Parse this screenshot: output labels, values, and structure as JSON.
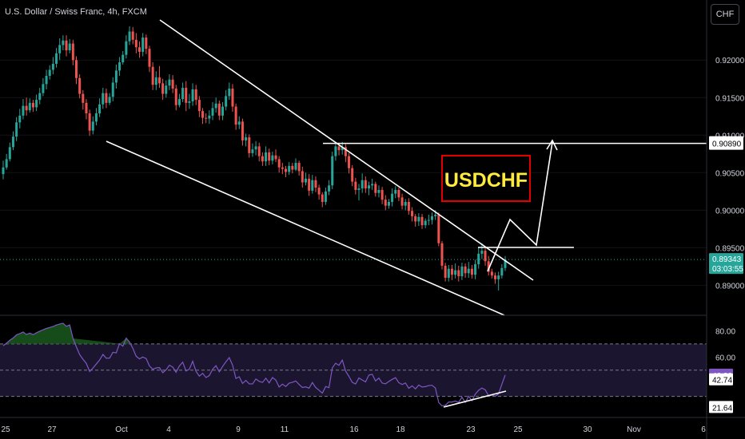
{
  "header": {
    "symbol_title": "U.S. Dollar / Swiss Franc, 4h, FXCM",
    "currency_button": "CHF"
  },
  "chart_data": [
    {
      "type": "candlestick",
      "title": "U.S. Dollar / Swiss Franc, 4h, FXCM",
      "annotation": "USDCHF",
      "ylim": [
        0.886,
        0.928
      ],
      "yticks": [
        "0.92000",
        "0.91500",
        "0.91000",
        "0.90500",
        "0.90000",
        "0.89500",
        "0.89000"
      ],
      "xticks": [
        "25",
        "27",
        "Oct",
        "4",
        "9",
        "11",
        "16",
        "18",
        "23",
        "25",
        "30",
        "Nov",
        "6"
      ],
      "last_price": "0.89343",
      "countdown": "03:03:55",
      "target_level": "0.90890",
      "colors": {
        "up": "#26a69a",
        "down": "#ef5350",
        "annotation_box": "#e50000",
        "annotation_text": "#ffeb3b",
        "lines": "#ffffff"
      },
      "candles": [
        [
          0.9048,
          0.9066,
          0.9041,
          0.9057
        ],
        [
          0.9057,
          0.9075,
          0.9054,
          0.9068
        ],
        [
          0.9068,
          0.909,
          0.9065,
          0.9084
        ],
        [
          0.9084,
          0.9105,
          0.908,
          0.9098
        ],
        [
          0.9098,
          0.9124,
          0.9092,
          0.9117
        ],
        [
          0.9117,
          0.9135,
          0.9109,
          0.9126
        ],
        [
          0.9126,
          0.9148,
          0.9121,
          0.9139
        ],
        [
          0.9139,
          0.915,
          0.9126,
          0.9133
        ],
        [
          0.9133,
          0.9149,
          0.913,
          0.9143
        ],
        [
          0.9143,
          0.9147,
          0.9131,
          0.9137
        ],
        [
          0.9137,
          0.9154,
          0.9132,
          0.9147
        ],
        [
          0.9147,
          0.9163,
          0.9141,
          0.9156
        ],
        [
          0.9156,
          0.9176,
          0.9152,
          0.9168
        ],
        [
          0.9168,
          0.9187,
          0.9161,
          0.9179
        ],
        [
          0.9179,
          0.9193,
          0.9174,
          0.9187
        ],
        [
          0.9187,
          0.9204,
          0.9181,
          0.9195
        ],
        [
          0.9195,
          0.9216,
          0.919,
          0.9209
        ],
        [
          0.9209,
          0.9229,
          0.92,
          0.922
        ],
        [
          0.922,
          0.9233,
          0.9213,
          0.9226
        ],
        [
          0.9226,
          0.9233,
          0.9205,
          0.9213
        ],
        [
          0.9213,
          0.9228,
          0.9209,
          0.9222
        ],
        [
          0.9222,
          0.9227,
          0.9193,
          0.92
        ],
        [
          0.92,
          0.9205,
          0.9168,
          0.9176
        ],
        [
          0.9176,
          0.9181,
          0.9149,
          0.9155
        ],
        [
          0.9155,
          0.916,
          0.9134,
          0.9143
        ],
        [
          0.9143,
          0.9148,
          0.9121,
          0.9129
        ],
        [
          0.9129,
          0.9134,
          0.9099,
          0.9106
        ],
        [
          0.9106,
          0.9125,
          0.9101,
          0.9118
        ],
        [
          0.9118,
          0.9136,
          0.9113,
          0.9129
        ],
        [
          0.9129,
          0.9149,
          0.9124,
          0.9141
        ],
        [
          0.9141,
          0.9163,
          0.9135,
          0.9156
        ],
        [
          0.9156,
          0.9162,
          0.9136,
          0.9143
        ],
        [
          0.9143,
          0.9156,
          0.914,
          0.9151
        ],
        [
          0.9151,
          0.9177,
          0.9145,
          0.917
        ],
        [
          0.917,
          0.9194,
          0.9162,
          0.9186
        ],
        [
          0.9186,
          0.9204,
          0.9179,
          0.9197
        ],
        [
          0.9197,
          0.9212,
          0.9194,
          0.9207
        ],
        [
          0.9207,
          0.9233,
          0.9202,
          0.9225
        ],
        [
          0.9225,
          0.9245,
          0.922,
          0.9238
        ],
        [
          0.9238,
          0.9244,
          0.9221,
          0.9227
        ],
        [
          0.9227,
          0.9236,
          0.9209,
          0.9217
        ],
        [
          0.9217,
          0.9225,
          0.9203,
          0.9211
        ],
        [
          0.9211,
          0.9236,
          0.9205,
          0.923
        ],
        [
          0.923,
          0.9234,
          0.9208,
          0.9215
        ],
        [
          0.9215,
          0.9219,
          0.9184,
          0.9191
        ],
        [
          0.9191,
          0.9197,
          0.916,
          0.9167
        ],
        [
          0.9167,
          0.9185,
          0.916,
          0.9177
        ],
        [
          0.9177,
          0.9192,
          0.9163,
          0.9169
        ],
        [
          0.9169,
          0.9175,
          0.9147,
          0.9155
        ],
        [
          0.9155,
          0.9173,
          0.915,
          0.9166
        ],
        [
          0.9166,
          0.9181,
          0.916,
          0.9174
        ],
        [
          0.9174,
          0.918,
          0.9156,
          0.9162
        ],
        [
          0.9162,
          0.9167,
          0.9133,
          0.914
        ],
        [
          0.914,
          0.9155,
          0.9137,
          0.9148
        ],
        [
          0.9148,
          0.917,
          0.9144,
          0.9163
        ],
        [
          0.9163,
          0.9172,
          0.9132,
          0.9143
        ],
        [
          0.9143,
          0.9155,
          0.9135,
          0.9145
        ],
        [
          0.9145,
          0.9169,
          0.9139,
          0.9161
        ],
        [
          0.9161,
          0.9167,
          0.914,
          0.9147
        ],
        [
          0.9147,
          0.9152,
          0.9124,
          0.9132
        ],
        [
          0.9132,
          0.9136,
          0.9115,
          0.9123
        ],
        [
          0.9123,
          0.9129,
          0.9116,
          0.9122
        ],
        [
          0.9122,
          0.9133,
          0.9115,
          0.9126
        ],
        [
          0.9126,
          0.9144,
          0.912,
          0.9136
        ],
        [
          0.9136,
          0.915,
          0.913,
          0.9142
        ],
        [
          0.9142,
          0.9146,
          0.912,
          0.9126
        ],
        [
          0.9126,
          0.9144,
          0.912,
          0.9138
        ],
        [
          0.9138,
          0.916,
          0.9133,
          0.9152
        ],
        [
          0.9152,
          0.917,
          0.9147,
          0.9162
        ],
        [
          0.9162,
          0.9168,
          0.9131,
          0.9138
        ],
        [
          0.9138,
          0.9142,
          0.9107,
          0.9114
        ],
        [
          0.9114,
          0.9125,
          0.9108,
          0.9118
        ],
        [
          0.9118,
          0.9122,
          0.9086,
          0.9093
        ],
        [
          0.9093,
          0.9102,
          0.9085,
          0.9097
        ],
        [
          0.9097,
          0.9101,
          0.907,
          0.9076
        ],
        [
          0.9076,
          0.9089,
          0.9071,
          0.9081
        ],
        [
          0.9081,
          0.9092,
          0.9073,
          0.9085
        ],
        [
          0.9085,
          0.909,
          0.9065,
          0.9072
        ],
        [
          0.9072,
          0.9077,
          0.9059,
          0.9065
        ],
        [
          0.9065,
          0.9085,
          0.9059,
          0.9077
        ],
        [
          0.9077,
          0.9082,
          0.906,
          0.9066
        ],
        [
          0.9066,
          0.9078,
          0.9061,
          0.9073
        ],
        [
          0.9073,
          0.9081,
          0.9064,
          0.9068
        ],
        [
          0.9068,
          0.9072,
          0.905,
          0.9057
        ],
        [
          0.9057,
          0.9063,
          0.9048,
          0.9055
        ],
        [
          0.9055,
          0.9059,
          0.9044,
          0.9051
        ],
        [
          0.9051,
          0.9064,
          0.9047,
          0.9059
        ],
        [
          0.9059,
          0.9063,
          0.9049,
          0.9054
        ],
        [
          0.9054,
          0.9069,
          0.9052,
          0.9063
        ],
        [
          0.9063,
          0.9066,
          0.9046,
          0.9052
        ],
        [
          0.9052,
          0.9058,
          0.903,
          0.9037
        ],
        [
          0.9037,
          0.905,
          0.9033,
          0.9042
        ],
        [
          0.9042,
          0.9048,
          0.9019,
          0.9026
        ],
        [
          0.9026,
          0.9047,
          0.9022,
          0.904
        ],
        [
          0.904,
          0.9045,
          0.9024,
          0.903
        ],
        [
          0.903,
          0.9034,
          0.9014,
          0.9021
        ],
        [
          0.9021,
          0.9024,
          0.9004,
          0.9011
        ],
        [
          0.9011,
          0.903,
          0.9007,
          0.9025
        ],
        [
          0.9025,
          0.904,
          0.902,
          0.9033
        ],
        [
          0.9033,
          0.9078,
          0.9028,
          0.9072
        ],
        [
          0.9072,
          0.9091,
          0.9066,
          0.9085
        ],
        [
          0.9085,
          0.909,
          0.9073,
          0.908
        ],
        [
          0.908,
          0.9091,
          0.9074,
          0.9084
        ],
        [
          0.9084,
          0.9088,
          0.9064,
          0.9072
        ],
        [
          0.9072,
          0.9076,
          0.9049,
          0.9056
        ],
        [
          0.9056,
          0.906,
          0.9032,
          0.9038
        ],
        [
          0.9038,
          0.9043,
          0.9021,
          0.9027
        ],
        [
          0.9027,
          0.9035,
          0.9013,
          0.9029
        ],
        [
          0.9029,
          0.9049,
          0.9023,
          0.904
        ],
        [
          0.904,
          0.9045,
          0.9023,
          0.9029
        ],
        [
          0.9029,
          0.9038,
          0.902,
          0.9033
        ],
        [
          0.9033,
          0.9042,
          0.9027,
          0.9035
        ],
        [
          0.9035,
          0.9038,
          0.9018,
          0.9023
        ],
        [
          0.9023,
          0.9033,
          0.9017,
          0.9027
        ],
        [
          0.9027,
          0.9031,
          0.9008,
          0.9014
        ],
        [
          0.9014,
          0.902,
          0.9,
          0.9006
        ],
        [
          0.9006,
          0.9015,
          0.9002,
          0.9011
        ],
        [
          0.9011,
          0.9029,
          0.9005,
          0.9022
        ],
        [
          0.9022,
          0.9032,
          0.9016,
          0.9027
        ],
        [
          0.9027,
          0.903,
          0.9012,
          0.9017
        ],
        [
          0.9017,
          0.9022,
          0.9001,
          0.9006
        ],
        [
          0.9006,
          0.9015,
          0.9,
          0.9011
        ],
        [
          0.9011,
          0.9016,
          0.8994,
          0.8999
        ],
        [
          0.8999,
          0.9004,
          0.8985,
          0.8992
        ],
        [
          0.8992,
          0.8995,
          0.8978,
          0.8985
        ],
        [
          0.8985,
          0.8996,
          0.8979,
          0.8991
        ],
        [
          0.8991,
          0.8995,
          0.8975,
          0.898
        ],
        [
          0.898,
          0.8989,
          0.8976,
          0.8986
        ],
        [
          0.8986,
          0.8994,
          0.898,
          0.8987
        ],
        [
          0.8987,
          0.8997,
          0.8981,
          0.8992
        ],
        [
          0.8992,
          0.9,
          0.8987,
          0.8994
        ],
        [
          0.8994,
          0.8997,
          0.8952,
          0.8956
        ],
        [
          0.8956,
          0.8959,
          0.8921,
          0.8926
        ],
        [
          0.8926,
          0.893,
          0.8905,
          0.891
        ],
        [
          0.891,
          0.8927,
          0.8905,
          0.8922
        ],
        [
          0.8922,
          0.8927,
          0.8907,
          0.8914
        ],
        [
          0.8914,
          0.8929,
          0.8909,
          0.892
        ],
        [
          0.892,
          0.8926,
          0.8905,
          0.8912
        ],
        [
          0.8912,
          0.893,
          0.8907,
          0.8925
        ],
        [
          0.8925,
          0.8929,
          0.891,
          0.8916
        ],
        [
          0.8916,
          0.8931,
          0.891,
          0.8922
        ],
        [
          0.8922,
          0.8927,
          0.8909,
          0.8914
        ],
        [
          0.8914,
          0.8934,
          0.8908,
          0.8928
        ],
        [
          0.8928,
          0.895,
          0.8922,
          0.8942
        ],
        [
          0.8942,
          0.8956,
          0.8935,
          0.8946
        ],
        [
          0.8946,
          0.8951,
          0.8926,
          0.8932
        ],
        [
          0.8932,
          0.8939,
          0.8913,
          0.8918
        ],
        [
          0.8918,
          0.8922,
          0.8909,
          0.8913
        ],
        [
          0.8913,
          0.8917,
          0.8902,
          0.8908
        ],
        [
          0.8908,
          0.8918,
          0.8893,
          0.8913
        ],
        [
          0.8913,
          0.8928,
          0.8909,
          0.8923
        ],
        [
          0.8923,
          0.8939,
          0.8919,
          0.8934
        ]
      ]
    },
    {
      "type": "line",
      "title": "",
      "ylim": [
        14,
        90
      ],
      "yticks": [
        "80.00",
        "60.00"
      ],
      "levels": [
        70,
        50,
        30
      ],
      "labels": {
        "current": "46.30",
        "mid": "42.74",
        "low": "21.64"
      },
      "colors": {
        "line": "#7e57c2",
        "band": "#1c1530",
        "overbought_fill": "#1b5e20"
      },
      "values": [
        68.6,
        70.6,
        72.8,
        74.5,
        76.9,
        77.9,
        79.1,
        77.2,
        78.2,
        77.1,
        78.5,
        79.7,
        80.8,
        81.8,
        82.5,
        83.3,
        84.4,
        85.2,
        85.7,
        83.4,
        84.5,
        74.2,
        67.8,
        61.9,
        58.3,
        55.2,
        49.0,
        51.6,
        54.7,
        57.8,
        62.0,
        59.1,
        59.2,
        63.6,
        63.2,
        70.2,
        68.3,
        74.4,
        71.5,
        66.6,
        60.6,
        58.6,
        60.0,
        58.9,
        53.2,
        50.7,
        51.7,
        52.0,
        48.1,
        50.3,
        53.8,
        52.3,
        48.4,
        53.2,
        56.1,
        49.4,
        50.8,
        56.8,
        49.1,
        45.5,
        47.6,
        44.4,
        45.9,
        50.7,
        53.4,
        48.8,
        52.8,
        56.4,
        59.6,
        53.8,
        43.7,
        45.0,
        39.9,
        42.2,
        39.6,
        39.5,
        43.3,
        41.5,
        40.7,
        43.9,
        40.3,
        44.4,
        42.5,
        37.2,
        39.4,
        37.6,
        40.1,
        40.8,
        41.8,
        39.1,
        36.8,
        37.3,
        36.3,
        40.6,
        36.8,
        34.7,
        32.5,
        37.6,
        36.7,
        51.8,
        55.3,
        53.7,
        57.7,
        49.3,
        45.3,
        40.7,
        39.5,
        44.1,
        42.5,
        41.1,
        46.3,
        46.9,
        41.8,
        44.0,
        40.2,
        39.6,
        41.4,
        43.0,
        44.3,
        40.5,
        39.1,
        40.3,
        36.2,
        38.1,
        35.7,
        38.7,
        37.2,
        37.5,
        38.3,
        38.5,
        36.4,
        25.4,
        22.8,
        23.3,
        25.7,
        25.7,
        26.5,
        25.4,
        29.5,
        25.4,
        30.1,
        26.8,
        31.7,
        34.7,
        36.4,
        35.1,
        30.5,
        31.1,
        30.1,
        32.0,
        39.3,
        46.3
      ]
    }
  ]
}
